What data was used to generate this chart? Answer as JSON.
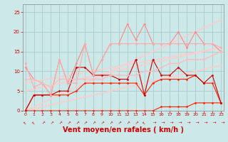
{
  "bg_color": "#cce8e8",
  "grid_color": "#aacccc",
  "xlabel": "Vent moyen/en rafales ( km/h )",
  "xlabel_color": "#cc0000",
  "xlabel_fontsize": 7,
  "tick_color": "#cc0000",
  "yticks": [
    0,
    5,
    10,
    15,
    20,
    25
  ],
  "xticks": [
    0,
    1,
    2,
    3,
    4,
    5,
    6,
    7,
    8,
    9,
    10,
    11,
    12,
    13,
    14,
    15,
    16,
    17,
    18,
    19,
    20,
    21,
    22,
    23
  ],
  "xlim": [
    -0.3,
    23.3
  ],
  "ylim": [
    0,
    27
  ],
  "lines": [
    {
      "x": [
        0,
        1,
        2,
        3,
        4,
        5,
        6,
        7,
        8,
        9,
        10,
        11,
        12,
        13,
        14,
        15,
        16,
        17,
        18,
        19,
        20,
        21,
        22,
        23
      ],
      "y": [
        0,
        0,
        0,
        0,
        0,
        0,
        0,
        0,
        0,
        0,
        0,
        0,
        0,
        0,
        0,
        0,
        1,
        1,
        1,
        1,
        2,
        2,
        2,
        2
      ],
      "color": "#ff2200",
      "lw": 0.8,
      "marker": "D",
      "ms": 1.5
    },
    {
      "x": [
        0,
        1,
        2,
        3,
        4,
        5,
        6,
        7,
        8,
        9,
        10,
        11,
        12,
        13,
        14,
        15,
        16,
        17,
        18,
        19,
        20,
        21,
        22,
        23
      ],
      "y": [
        0,
        4,
        4,
        4,
        4,
        4,
        5,
        7,
        7,
        7,
        7,
        7,
        7,
        7,
        4,
        7,
        8,
        8,
        8,
        8,
        9,
        7,
        7,
        2
      ],
      "color": "#ff2200",
      "lw": 0.8,
      "marker": "D",
      "ms": 1.5
    },
    {
      "x": [
        0,
        1,
        2,
        3,
        4,
        5,
        6,
        7,
        8,
        9,
        10,
        11,
        12,
        13,
        14,
        15,
        16,
        17,
        18,
        19,
        20,
        21,
        22,
        23
      ],
      "y": [
        0,
        4,
        4,
        4,
        5,
        5,
        11,
        11,
        9,
        9,
        9,
        8,
        8,
        13,
        4,
        13,
        9,
        9,
        11,
        9,
        9,
        7,
        9,
        2
      ],
      "color": "#cc0000",
      "lw": 0.8,
      "marker": "D",
      "ms": 1.5
    },
    {
      "x": [
        0,
        1,
        2,
        3,
        4,
        5,
        6,
        7,
        8,
        9,
        10,
        11,
        12,
        13,
        14,
        15,
        16,
        17,
        18,
        19,
        20,
        21,
        22,
        23
      ],
      "y": [
        11,
        8,
        7,
        4,
        13,
        7,
        12,
        17,
        9,
        13,
        17,
        17,
        22,
        18,
        22,
        17,
        17,
        17,
        20,
        16,
        20,
        17,
        17,
        15
      ],
      "color": "#ff8888",
      "lw": 0.8,
      "marker": "D",
      "ms": 1.5
    },
    {
      "x": [
        0,
        1,
        2,
        3,
        4,
        5,
        6,
        7,
        8,
        9,
        10,
        11,
        12,
        13,
        14,
        15,
        16,
        17,
        18,
        19,
        20,
        21,
        22,
        23
      ],
      "y": [
        12,
        6,
        7,
        4,
        13,
        7,
        7,
        17,
        9,
        13,
        17,
        17,
        17,
        17,
        17,
        17,
        17,
        17,
        17,
        17,
        17,
        17,
        17,
        16
      ],
      "color": "#ffaaaa",
      "lw": 0.8,
      "marker": "D",
      "ms": 1.5
    },
    {
      "x": [
        0,
        1,
        2,
        3,
        4,
        5,
        6,
        7,
        8,
        9,
        10,
        11,
        12,
        13,
        14,
        15,
        16,
        17,
        18,
        19,
        20,
        21,
        22,
        23
      ],
      "y": [
        8,
        8,
        7,
        6,
        8,
        8,
        8,
        8,
        8,
        8,
        9,
        9,
        9,
        9,
        10,
        10,
        11,
        12,
        12,
        13,
        13,
        13,
        14,
        15
      ],
      "color": "#ffbbbb",
      "lw": 1.0,
      "marker": "D",
      "ms": 1.5
    },
    {
      "x": [
        0,
        23
      ],
      "y": [
        0,
        23
      ],
      "color": "#ffcccc",
      "lw": 1.2,
      "marker": null,
      "ms": 0
    },
    {
      "x": [
        0,
        23
      ],
      "y": [
        0,
        11.5
      ],
      "color": "#ffcccc",
      "lw": 1.2,
      "marker": null,
      "ms": 0
    },
    {
      "x": [
        0,
        23
      ],
      "y": [
        5,
        16
      ],
      "color": "#ffcccc",
      "lw": 1.2,
      "marker": null,
      "ms": 0
    },
    {
      "x": [
        0,
        23
      ],
      "y": [
        7,
        16
      ],
      "color": "#ffcccc",
      "lw": 1.0,
      "marker": null,
      "ms": 0
    }
  ],
  "arrow_symbols": [
    "b",
    "b",
    "b",
    "b",
    "b",
    "b",
    "b",
    "b",
    "b",
    "b",
    "b",
    "b",
    "b",
    "b",
    "b",
    "b",
    "b",
    "b",
    "b",
    "b",
    "b",
    "b",
    "b",
    "b"
  ]
}
